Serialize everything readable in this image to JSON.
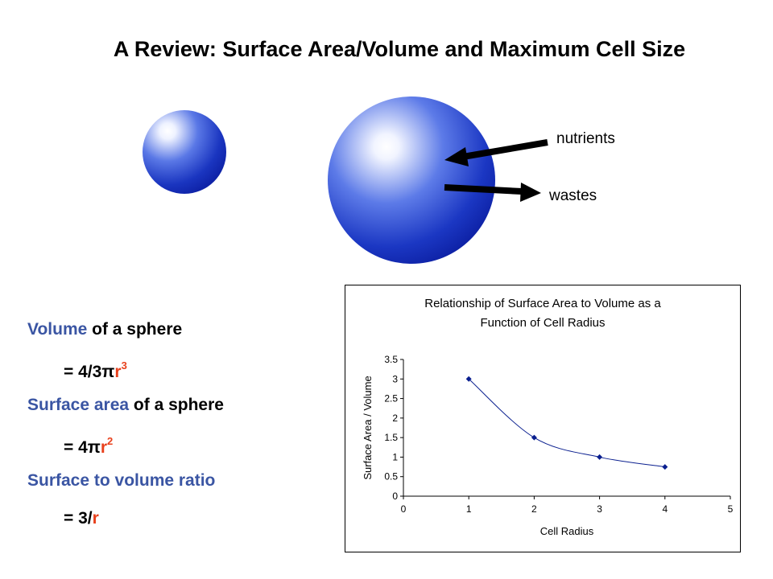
{
  "title": "A Review: Surface Area/Volume and Maximum Cell Size",
  "diagram": {
    "nutrients_label": "nutrients",
    "wastes_label": "wastes",
    "sphere_color": "#1a2fb8",
    "highlight_color": "#ffffff"
  },
  "formulas": {
    "volume_word": "Volume",
    "volume_rest": " of a sphere",
    "volume_eq": "= 4/3π",
    "volume_r": "r",
    "volume_exp": "3",
    "area_word": "Surface area",
    "area_rest": " of a sphere",
    "area_eq": "= 4π",
    "area_r": "r",
    "area_exp": "2",
    "ratio_text": "Surface to volume ratio",
    "ratio_eq": "= 3/",
    "ratio_r": "r",
    "colors": {
      "blue": "#3a55a3",
      "red": "#e8401c"
    }
  },
  "chart_data": {
    "type": "line",
    "title_line1": "Relationship of Surface Area to Volume as a",
    "title_line2": "Function of Cell Radius",
    "xlabel": "Cell Radius",
    "ylabel": "Surface Area / Volume",
    "xlim": [
      0,
      5
    ],
    "ylim": [
      0,
      3.5
    ],
    "xticks": [
      0,
      1,
      2,
      3,
      4,
      5
    ],
    "yticks": [
      0,
      0.5,
      1,
      1.5,
      2,
      2.5,
      3,
      3.5
    ],
    "x": [
      1,
      2,
      3,
      4
    ],
    "y": [
      3,
      1.5,
      1,
      0.75
    ],
    "line_color": "#0a1f8f",
    "marker_color": "#0a1f8f",
    "grid": false,
    "legend": "none"
  }
}
